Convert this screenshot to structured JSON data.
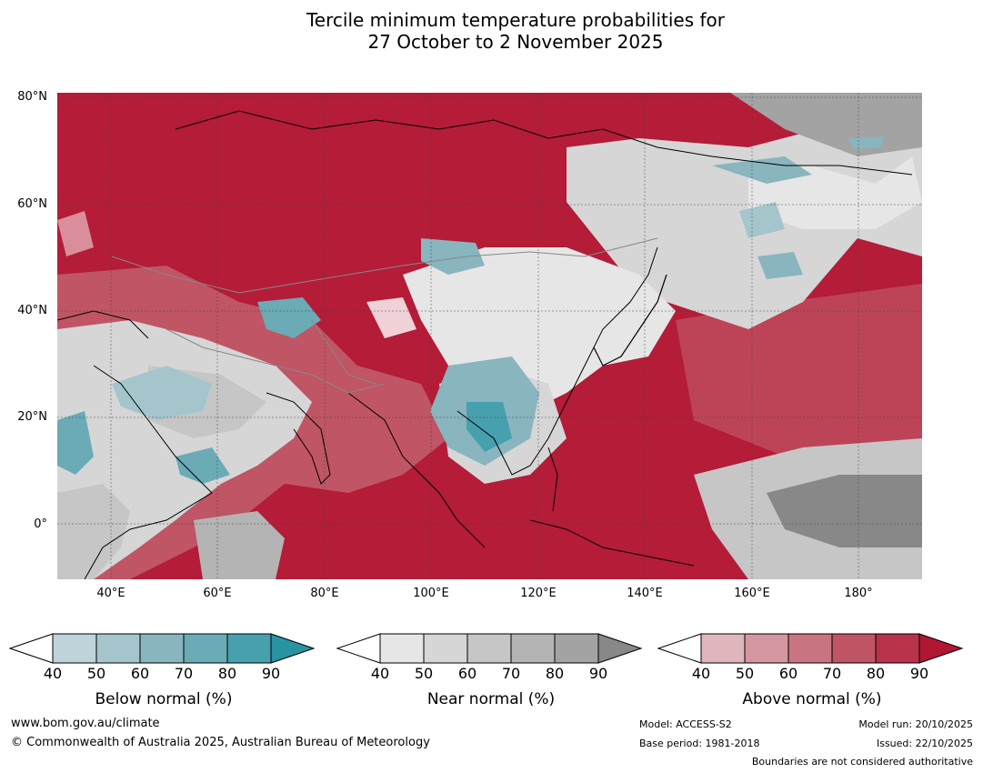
{
  "title": {
    "line1": "Tercile minimum temperature probabilities for",
    "line2": "27 October to 2 November 2025"
  },
  "map": {
    "lat_labels": [
      "80°N",
      "60°N",
      "40°N",
      "20°N",
      "0°"
    ],
    "lon_labels": [
      "40°E",
      "60°E",
      "80°E",
      "100°E",
      "120°E",
      "140°E",
      "160°E",
      "180°"
    ]
  },
  "colorbars": [
    {
      "title": "Below normal (%)",
      "ticks": [
        "40",
        "50",
        "60",
        "70",
        "80",
        "90"
      ],
      "colors": [
        "#bed3da",
        "#a5c5cc",
        "#89b5bf",
        "#6aabb6",
        "#47a0ae",
        "#2893a3"
      ]
    },
    {
      "title": "Near normal (%)",
      "ticks": [
        "40",
        "50",
        "60",
        "70",
        "80",
        "90"
      ],
      "colors": [
        "#e6e6e6",
        "#d6d6d6",
        "#c6c6c6",
        "#b4b4b4",
        "#a3a3a3",
        "#888888"
      ]
    },
    {
      "title": "Above normal (%)",
      "ticks": [
        "40",
        "50",
        "60",
        "70",
        "80",
        "90"
      ],
      "colors": [
        "#e0b6bd",
        "#d4969f",
        "#c97581",
        "#c05565",
        "#b8324a",
        "#b01632"
      ]
    }
  ],
  "footer": {
    "website": "www.bom.gov.au/climate",
    "copyright": "© Commonwealth of Australia 2025, Australian Bureau of Meteorology",
    "model": "Model: ACCESS-S2",
    "base_period": "Base period: 1981-2018",
    "model_run": "Model run: 20/10/2025",
    "issued": "Issued: 22/10/2025",
    "boundaries": "Boundaries are not considered authoritative"
  }
}
